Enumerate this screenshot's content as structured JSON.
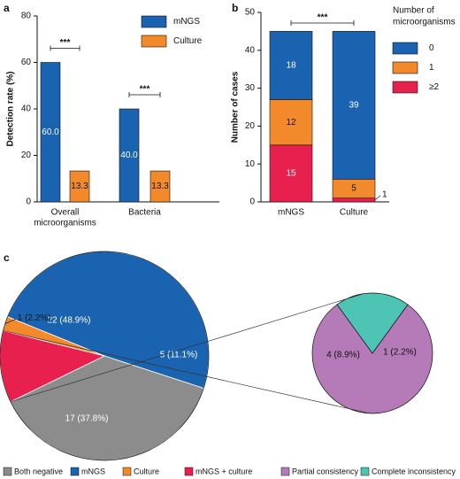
{
  "panels": {
    "a": "a",
    "b": "b",
    "c": "c"
  },
  "chart_data": [
    {
      "panel": "a",
      "type": "bar",
      "ylabel": "Detection rate (%)",
      "ylim": [
        0,
        80
      ],
      "yticks": [
        "0",
        "20",
        "40",
        "60",
        "80"
      ],
      "categories": [
        "Overall microorganisms",
        "Bacteria"
      ],
      "category_lines": [
        [
          "Overall",
          "microorganisms"
        ],
        [
          "Bacteria"
        ]
      ],
      "series": [
        {
          "name": "mNGS",
          "color": "#1a63b0",
          "values": [
            60.0,
            40.0
          ],
          "labels": [
            "60.0",
            "40.0"
          ]
        },
        {
          "name": "Culture",
          "color": "#f28a2b",
          "values": [
            13.3,
            13.3
          ],
          "labels": [
            "13.3",
            "13.3"
          ]
        }
      ],
      "significance": [
        "***",
        "***"
      ],
      "legend": "top-right"
    },
    {
      "panel": "b",
      "type": "bar",
      "stacked": true,
      "ylabel": "Number of cases",
      "ylim": [
        0,
        50
      ],
      "yticks": [
        "0",
        "10",
        "20",
        "30",
        "40",
        "50"
      ],
      "categories": [
        "mNGS",
        "Culture"
      ],
      "legend_title": "Number of microorganisms",
      "legend_title_lines": [
        "Number of",
        "microorganisms"
      ],
      "series": [
        {
          "name": "≥2",
          "color": "#e8204e",
          "values": [
            15,
            1
          ],
          "labels": [
            "15",
            "1"
          ]
        },
        {
          "name": "1",
          "color": "#f28a2b",
          "values": [
            12,
            5
          ],
          "labels": [
            "12",
            "5"
          ]
        },
        {
          "name": "0",
          "color": "#1a63b0",
          "values": [
            18,
            39
          ],
          "labels": [
            "18",
            "39"
          ]
        }
      ],
      "legend_order": [
        "0",
        "1",
        "≥2"
      ],
      "significance": "***",
      "legend": "right"
    },
    {
      "panel": "c",
      "type": "pie",
      "slices": [
        {
          "name": "mNGS",
          "value": 22,
          "label": "22 (48.9%)",
          "color": "#1a63b0"
        },
        {
          "name": "Both negative",
          "value": 17,
          "label": "17 (37.8%)",
          "color": "#8c8c8c"
        },
        {
          "name": "mNGS + culture",
          "value": 5,
          "label": "5 (11.1%)",
          "color": "#e8204e"
        },
        {
          "name": "Culture",
          "value": 1,
          "label": "1 (2.2%)",
          "color": "#f28a2b"
        }
      ],
      "legend_order": [
        "Both negative",
        "mNGS",
        "Culture",
        "mNGS + culture"
      ],
      "exploded_slice": "mNGS + culture",
      "legend": "bottom"
    },
    {
      "panel": "c",
      "type": "pie",
      "slices": [
        {
          "name": "Partial consistency",
          "value": 4,
          "label": "4 (8.9%)",
          "color": "#b57ab8"
        },
        {
          "name": "Complete inconsistency",
          "value": 1,
          "label": "1 (2.2%)",
          "color": "#4ec4b4"
        }
      ],
      "legend": "bottom"
    }
  ]
}
